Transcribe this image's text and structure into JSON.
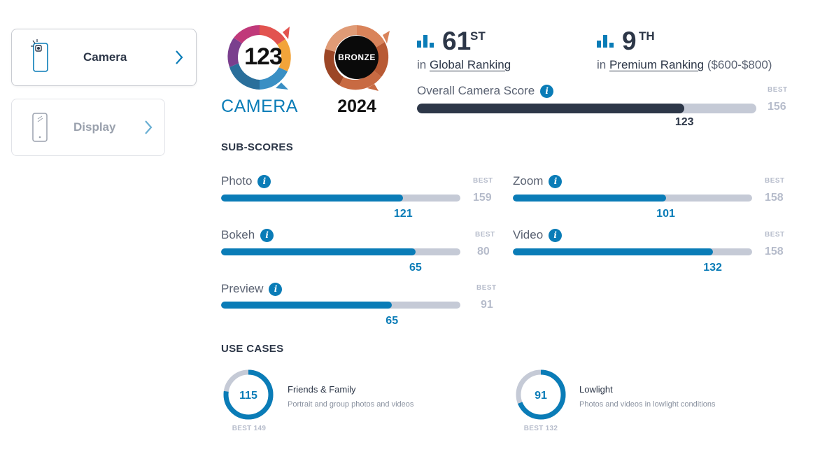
{
  "sidebar": {
    "items": [
      {
        "label": "Camera",
        "active": true,
        "icon": "camera-phone-icon"
      },
      {
        "label": "Display",
        "active": false,
        "icon": "phone-icon"
      }
    ]
  },
  "badges": {
    "camera": {
      "score": "123",
      "label": "CAMERA"
    },
    "bronze": {
      "medal": "BRONZE",
      "year": "2024"
    }
  },
  "rankings": {
    "global": {
      "rank": "61",
      "suffix": "ST",
      "prefix": "in",
      "link": "Global Ranking",
      "extra": ""
    },
    "premium": {
      "rank": "9",
      "suffix": "TH",
      "prefix": "in",
      "link": "Premium Ranking",
      "extra": "($600-$800)"
    }
  },
  "overall": {
    "title": "Overall Camera Score",
    "best_label": "BEST",
    "best": "156",
    "score": "123",
    "fraction": 0.788
  },
  "subscores": {
    "heading": "SUB-SCORES",
    "items": [
      {
        "name": "Photo",
        "score": "121",
        "best": "159",
        "best_label": "BEST",
        "fraction": 0.761
      },
      {
        "name": "Zoom",
        "score": "101",
        "best": "158",
        "best_label": "BEST",
        "fraction": 0.639
      },
      {
        "name": "Bokeh",
        "score": "65",
        "best": "80",
        "best_label": "BEST",
        "fraction": 0.8125
      },
      {
        "name": "Video",
        "score": "132",
        "best": "158",
        "best_label": "BEST",
        "fraction": 0.835
      },
      {
        "name": "Preview",
        "score": "65",
        "best": "91",
        "best_label": "BEST",
        "fraction": 0.714
      }
    ]
  },
  "use_cases": {
    "heading": "USE CASES",
    "items": [
      {
        "title": "Friends & Family",
        "desc": "Portrait and group photos and videos",
        "score": "115",
        "best": "BEST 149",
        "fraction": 0.772
      },
      {
        "title": "Lowlight",
        "desc": "Photos and videos in lowlight conditions",
        "score": "91",
        "best": "BEST 132",
        "fraction": 0.689
      }
    ]
  },
  "colors": {
    "accent": "#0a7cb7",
    "dark_bar": "#2d3748",
    "track": "#c5cad6",
    "bronze": "#c0643a"
  }
}
